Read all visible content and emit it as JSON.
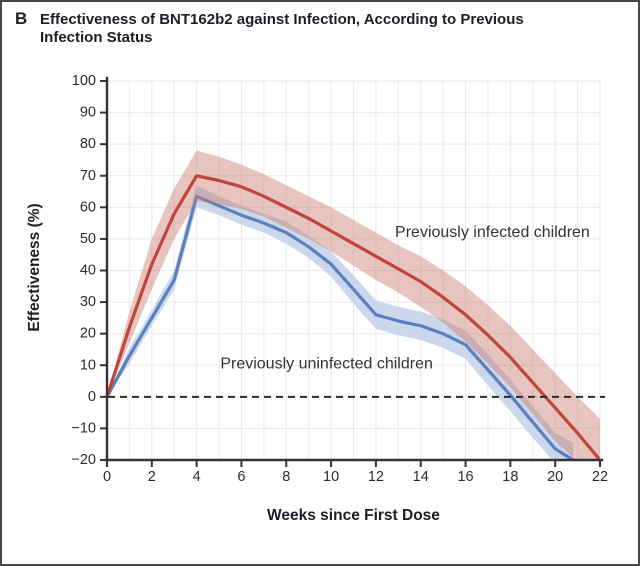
{
  "panel_label": "B",
  "title_lines": [
    "Effectiveness of BNT162b2 against Infection, According to Previous",
    "Infection Status"
  ],
  "chart_data": {
    "type": "line",
    "title": "Effectiveness of BNT162b2 against Infection, According to Previous Infection Status",
    "xlabel": "Weeks since First Dose",
    "ylabel": "Effectiveness (%)",
    "xlim": [
      0,
      22
    ],
    "ylim": [
      -20,
      100
    ],
    "x_ticks": [
      0,
      2,
      4,
      6,
      8,
      10,
      12,
      14,
      16,
      18,
      20,
      22
    ],
    "x_tick_labels": [
      "0",
      "2",
      "4",
      "6",
      "8",
      "10",
      "12",
      "14",
      "16",
      "18",
      "20",
      "22"
    ],
    "y_ticks": [
      100,
      90,
      80,
      70,
      60,
      50,
      40,
      30,
      20,
      10,
      0,
      -10,
      -20
    ],
    "y_tick_labels": [
      "100",
      "90",
      "80",
      "70",
      "60",
      "50",
      "40",
      "30",
      "20",
      "10",
      "0",
      "−10",
      "−20"
    ],
    "grid": "on",
    "grid_x_step": 1,
    "zero_line": {
      "style": "dashed",
      "value": 0,
      "color": "#2a2a2a"
    },
    "legend_position": "inline-annotations",
    "colors": {
      "axis": "#333336",
      "grid": "#e9eaec",
      "background": "#ffffff"
    },
    "series": [
      {
        "name": "Previously infected children",
        "color": "#c0453a",
        "band_color": "rgba(201,124,112,0.45)",
        "x": [
          0,
          1,
          2,
          3,
          4,
          5,
          6,
          7,
          8,
          9,
          10,
          11,
          12,
          13,
          14,
          15,
          16,
          17,
          18,
          19,
          20,
          21,
          22
        ],
        "y": [
          0,
          22,
          42,
          58,
          70,
          68.5,
          66.5,
          63.5,
          60,
          56.5,
          52.5,
          48.5,
          44.5,
          40.5,
          36.5,
          31.5,
          26,
          19.5,
          12.5,
          4.5,
          -3.5,
          -11.5,
          -20
        ],
        "band_upper": [
          0,
          27,
          50,
          66,
          78,
          76,
          73.5,
          70.5,
          67,
          63.5,
          60,
          56,
          52,
          48,
          44.5,
          40,
          35,
          29,
          22.5,
          15,
          7.5,
          0,
          -7
        ],
        "band_lower": [
          0,
          17,
          34,
          50,
          62,
          61,
          59.5,
          57,
          53.5,
          50,
          46,
          41.5,
          37,
          33,
          28.5,
          23.5,
          17.5,
          10.5,
          3,
          -5.5,
          -14,
          -20.5,
          -21
        ]
      },
      {
        "name": "Previously uninfected children",
        "color": "#5b80c0",
        "band_color": "#cbd8ec",
        "x": [
          0,
          1,
          2,
          3,
          4,
          5,
          6,
          7,
          8,
          9,
          10,
          11,
          12,
          13,
          14,
          15,
          16,
          17,
          18,
          19,
          20,
          20.8
        ],
        "y": [
          0,
          13,
          25,
          37,
          63.5,
          60.5,
          57.5,
          55,
          52,
          47.5,
          42,
          34,
          26,
          24,
          22.5,
          20,
          16.5,
          8.5,
          0.5,
          -8,
          -16.5,
          -20
        ],
        "band_upper": [
          0,
          15.5,
          27.5,
          40,
          67,
          63.5,
          60.5,
          58,
          55.5,
          51,
          46,
          38.5,
          30.5,
          28.5,
          27,
          24.5,
          21,
          13.5,
          5.5,
          -3,
          -11.5,
          -14.5
        ],
        "band_lower": [
          0,
          10.5,
          22.5,
          34,
          60,
          57.5,
          54.5,
          52,
          48.5,
          44,
          38,
          29.5,
          21.5,
          19.5,
          18,
          15.5,
          12,
          3.5,
          -4.5,
          -13,
          -21,
          -22
        ]
      }
    ],
    "annotations": [
      {
        "text": "Previously infected children",
        "x": 17.2,
        "y": 52
      },
      {
        "text": "Previously uninfected children",
        "x": 9.8,
        "y": 10.4
      }
    ]
  }
}
